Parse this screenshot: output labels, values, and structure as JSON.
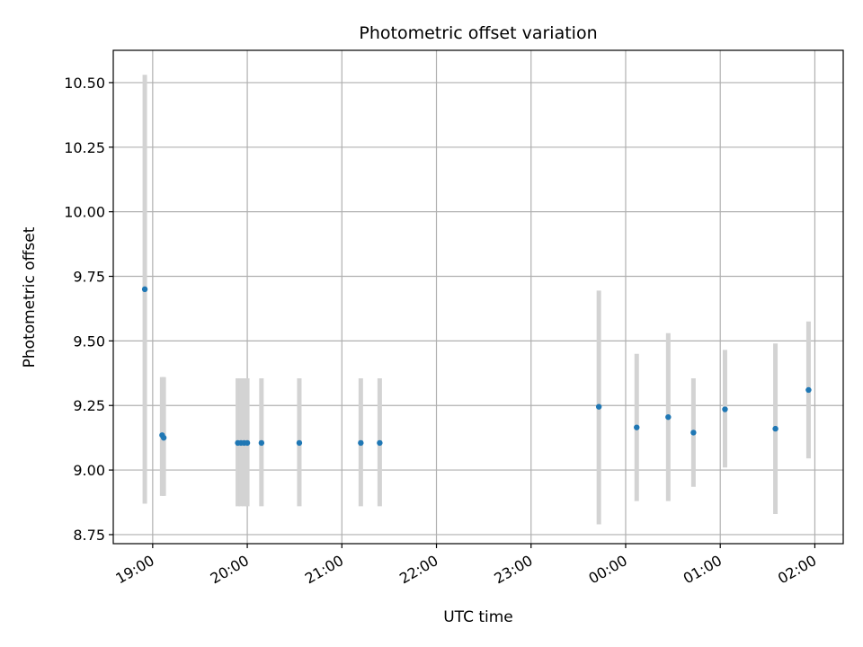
{
  "chart_data": {
    "type": "scatter",
    "title": "Photometric offset variation",
    "xlabel": "UTC time",
    "ylabel": "Photometric offset",
    "x_tick_labels": [
      "19:00",
      "20:00",
      "21:00",
      "22:00",
      "23:00",
      "00:00",
      "01:00",
      "02:00"
    ],
    "y_ticks": [
      8.75,
      9.0,
      9.25,
      9.5,
      9.75,
      10.0,
      10.25,
      10.5
    ],
    "y_tick_labels": [
      "8.75",
      "9.00",
      "9.25",
      "9.50",
      "9.75",
      "10.00",
      "10.25",
      "10.50"
    ],
    "ylim": [
      8.715,
      10.625
    ],
    "xlim": [
      "18:35",
      "02:18"
    ],
    "grid": true,
    "colors": {
      "point": "#1f77b4",
      "errorbar": "#d3d3d3",
      "grid": "#b0b0b0"
    },
    "points": [
      {
        "time": "18:55",
        "y": 9.7,
        "err_low": 8.87,
        "err_high": 10.53
      },
      {
        "time": "19:06",
        "y": 9.135,
        "err_low": 8.9,
        "err_high": 9.36
      },
      {
        "time": "19:07",
        "y": 9.125,
        "err_low": 8.9,
        "err_high": 9.36
      },
      {
        "time": "19:54",
        "y": 9.105,
        "err_low": 8.86,
        "err_high": 9.355
      },
      {
        "time": "19:56",
        "y": 9.105,
        "err_low": 8.86,
        "err_high": 9.355
      },
      {
        "time": "19:58",
        "y": 9.105,
        "err_low": 8.86,
        "err_high": 9.355
      },
      {
        "time": "20:00",
        "y": 9.105,
        "err_low": 8.86,
        "err_high": 9.355
      },
      {
        "time": "20:09",
        "y": 9.105,
        "err_low": 8.86,
        "err_high": 9.355
      },
      {
        "time": "20:33",
        "y": 9.105,
        "err_low": 8.86,
        "err_high": 9.355
      },
      {
        "time": "21:12",
        "y": 9.105,
        "err_low": 8.86,
        "err_high": 9.355
      },
      {
        "time": "21:24",
        "y": 9.105,
        "err_low": 8.86,
        "err_high": 9.355
      },
      {
        "time": "23:43",
        "y": 9.245,
        "err_low": 8.79,
        "err_high": 9.695
      },
      {
        "time": "00:07",
        "y": 9.165,
        "err_low": 8.88,
        "err_high": 9.45
      },
      {
        "time": "00:27",
        "y": 9.205,
        "err_low": 8.88,
        "err_high": 9.53
      },
      {
        "time": "00:43",
        "y": 9.145,
        "err_low": 8.935,
        "err_high": 9.355
      },
      {
        "time": "01:03",
        "y": 9.235,
        "err_low": 9.01,
        "err_high": 9.465
      },
      {
        "time": "01:35",
        "y": 9.16,
        "err_low": 8.83,
        "err_high": 9.49
      },
      {
        "time": "01:56",
        "y": 9.31,
        "err_low": 9.045,
        "err_high": 9.575
      }
    ]
  }
}
